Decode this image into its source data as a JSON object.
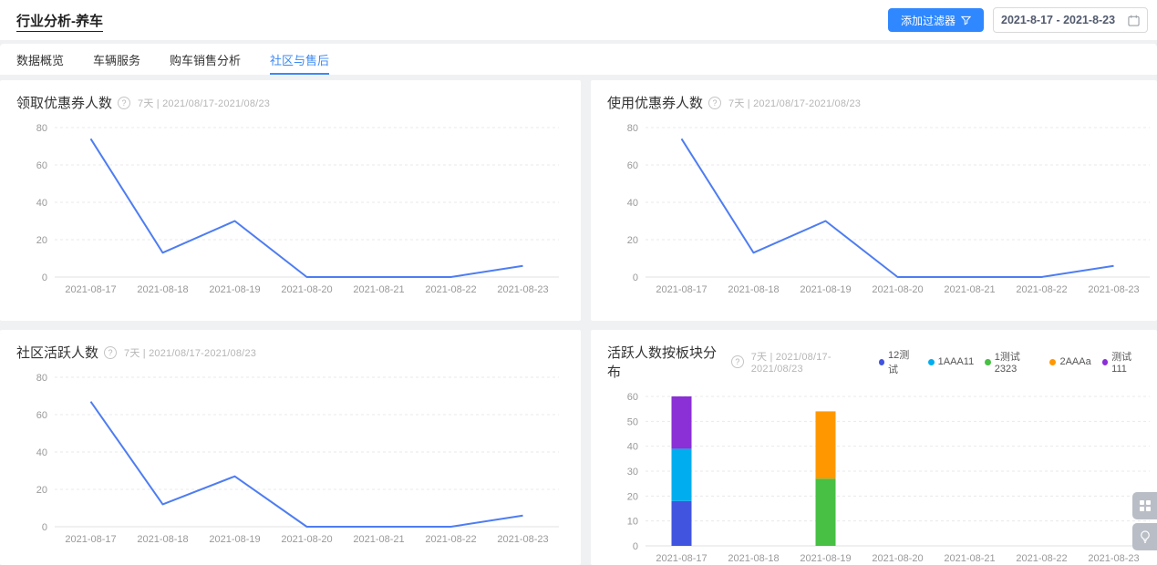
{
  "header": {
    "title": "行业分析-养车",
    "add_filter_label": "添加过滤器",
    "date_range": "2021-8-17 - 2021-8-23"
  },
  "tabs": [
    {
      "label": "数据概览",
      "active": false
    },
    {
      "label": "车辆服务",
      "active": false
    },
    {
      "label": "购车销售分析",
      "active": false
    },
    {
      "label": "社区与售后",
      "active": true
    }
  ],
  "icons": {
    "filter": "funnel-icon",
    "date": "calendar-icon",
    "help": "?",
    "float_top": "widgets-grid-icon",
    "float_bottom": "lightbulb-icon"
  },
  "colors": {
    "accent": "#2f88ff",
    "active_tab": "#3d8af5",
    "line_blue": "#4e7df2"
  },
  "chart_data": [
    {
      "type": "line",
      "title": "领取优惠券人数",
      "period": "7天 | 2021/08/17-2021/08/23",
      "x": [
        "2021-08-17",
        "2021-08-18",
        "2021-08-19",
        "2021-08-20",
        "2021-08-21",
        "2021-08-22",
        "2021-08-23"
      ],
      "values": [
        74,
        13,
        30,
        0,
        0,
        0,
        6
      ],
      "ylim": [
        0,
        80
      ],
      "yticks": [
        0,
        20,
        40,
        60,
        80
      ],
      "line_color": "#4e7df2",
      "grid": true
    },
    {
      "type": "line",
      "title": "使用优惠券人数",
      "period": "7天 | 2021/08/17-2021/08/23",
      "x": [
        "2021-08-17",
        "2021-08-18",
        "2021-08-19",
        "2021-08-20",
        "2021-08-21",
        "2021-08-22",
        "2021-08-23"
      ],
      "values": [
        74,
        13,
        30,
        0,
        0,
        0,
        6
      ],
      "ylim": [
        0,
        80
      ],
      "yticks": [
        0,
        20,
        40,
        60,
        80
      ],
      "line_color": "#4e7df2",
      "grid": true
    },
    {
      "type": "line",
      "title": "社区活跃人数",
      "period": "7天 | 2021/08/17-2021/08/23",
      "x": [
        "2021-08-17",
        "2021-08-18",
        "2021-08-19",
        "2021-08-20",
        "2021-08-21",
        "2021-08-22",
        "2021-08-23"
      ],
      "values": [
        67,
        12,
        27,
        0,
        0,
        0,
        6
      ],
      "ylim": [
        0,
        80
      ],
      "yticks": [
        0,
        20,
        40,
        60,
        80
      ],
      "line_color": "#4e7df2",
      "grid": true
    },
    {
      "type": "bar",
      "stacked": true,
      "title": "活跃人数按板块分布",
      "period": "7天 | 2021/08/17-2021/08/23",
      "categories": [
        "2021-08-17",
        "2021-08-18",
        "2021-08-19",
        "2021-08-20",
        "2021-08-21",
        "2021-08-22",
        "2021-08-23"
      ],
      "series": [
        {
          "name": "12测试",
          "color": "#4154e0",
          "values": [
            18,
            0,
            0,
            0,
            0,
            0,
            0
          ]
        },
        {
          "name": "1AAA11",
          "color": "#00aeef",
          "values": [
            21,
            0,
            0,
            0,
            0,
            0,
            0
          ]
        },
        {
          "name": "1测试2323",
          "color": "#47c043",
          "values": [
            0,
            0,
            27,
            0,
            0,
            0,
            0
          ]
        },
        {
          "name": "2AAAa",
          "color": "#ff9800",
          "values": [
            0,
            0,
            27,
            0,
            0,
            0,
            0
          ]
        },
        {
          "name": "测试111",
          "color": "#8b2fd6",
          "values": [
            21,
            0,
            0,
            0,
            0,
            0,
            0
          ]
        }
      ],
      "ylim": [
        0,
        60
      ],
      "yticks": [
        0,
        10,
        20,
        30,
        40,
        50,
        60
      ],
      "legend_position": "top-right",
      "grid": true
    }
  ]
}
